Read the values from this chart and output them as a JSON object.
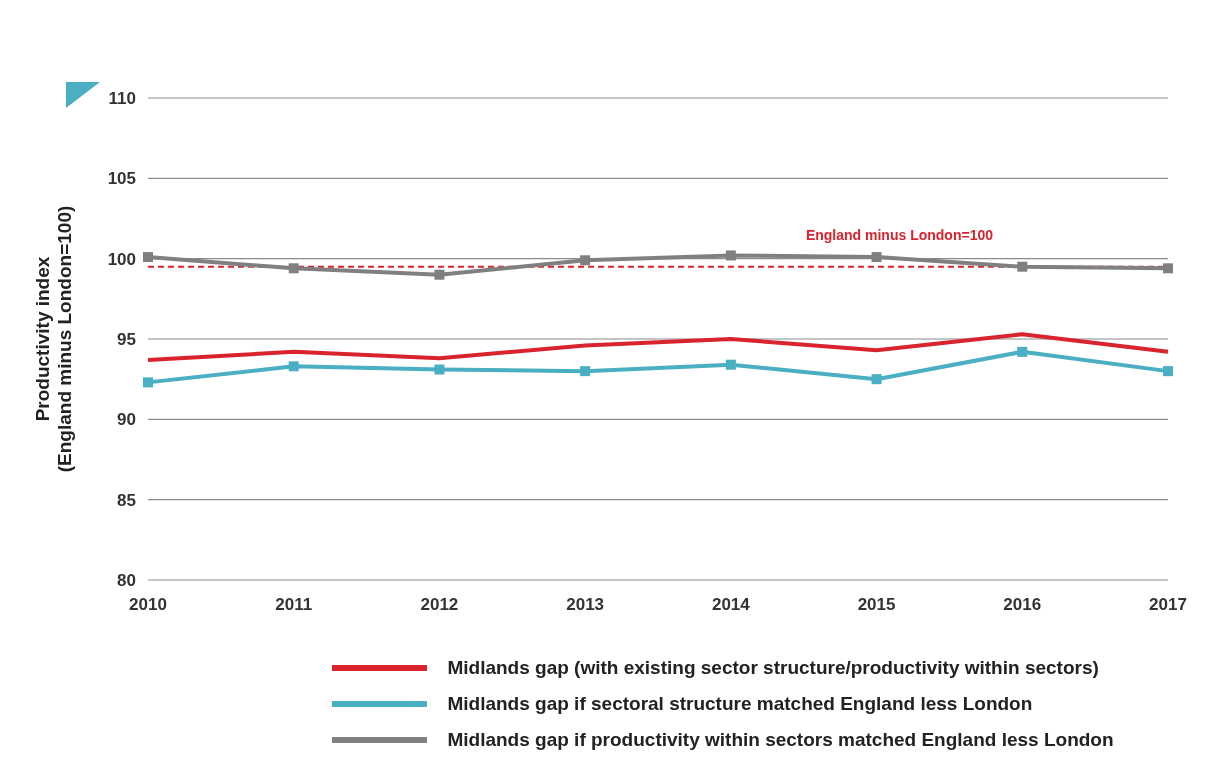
{
  "chart_data": {
    "type": "line",
    "ylabel": "Productivity index\n(England minus London=100)",
    "categories": [
      "2010",
      "2011",
      "2012",
      "2013",
      "2014",
      "2015",
      "2016",
      "2017"
    ],
    "series": [
      {
        "name": "Midlands gap (with existing sector structure/productivity within sectors)",
        "color": "#d9232e",
        "marker": "none",
        "values": [
          93.7,
          94.2,
          93.8,
          94.6,
          95.0,
          94.3,
          95.3,
          94.2
        ]
      },
      {
        "name": "Midlands gap if sectoral structure matched England less London",
        "color": "#4bafc4",
        "marker": "square",
        "values": [
          92.3,
          93.3,
          93.1,
          93.0,
          93.4,
          92.5,
          94.2,
          93.0
        ]
      },
      {
        "name": "Midlands gap if productivity within sectors matched England less London",
        "color": "#808080",
        "marker": "square",
        "values": [
          100.1,
          99.4,
          99.0,
          99.9,
          100.2,
          100.1,
          99.5,
          99.4
        ]
      }
    ],
    "ylim": [
      80,
      110
    ],
    "yticks": [
      80,
      85,
      90,
      95,
      100,
      105,
      110
    ],
    "grid": "y",
    "legend": "bottom",
    "line_style": "solid",
    "ref_lines": [
      {
        "axis": "y",
        "value": 99.5,
        "label": "England minus London=100",
        "color": "#d9232e",
        "line_style": "dashed"
      }
    ]
  }
}
